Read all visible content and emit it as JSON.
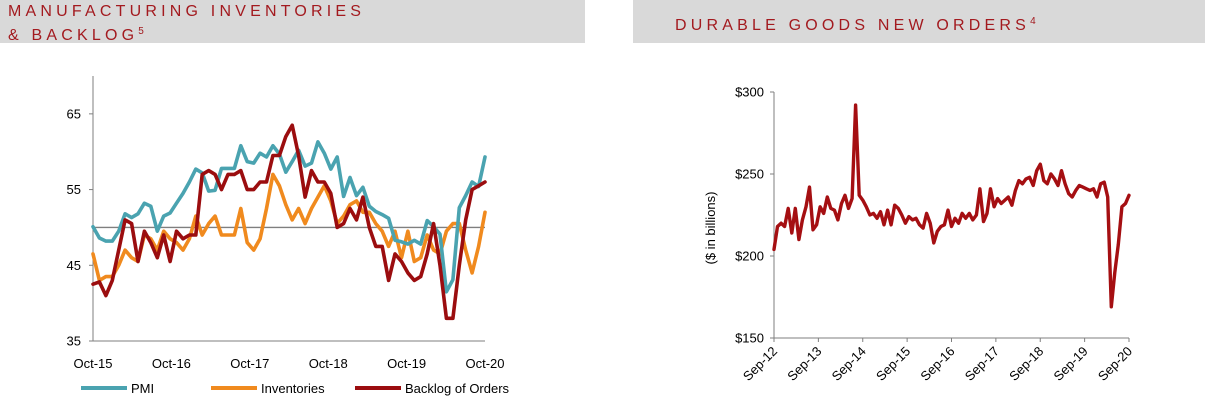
{
  "left_header": {
    "line1": "MANUFACTURING INVENTORIES",
    "line2": "& BACKLOG",
    "sup": "5"
  },
  "right_header": {
    "title": "DURABLE GOODS NEW ORDERS",
    "sup": "4"
  },
  "colors": {
    "header_bg": "#d9d9d9",
    "header_text": "#a31a1f",
    "pmi": "#4aa3b0",
    "inventories": "#f08a1e",
    "backlog": "#9b0d0f",
    "durable": "#a50f12"
  },
  "chart_data": [
    {
      "type": "line",
      "ylim": [
        35,
        70
      ],
      "yticks": [
        "35",
        "45",
        "55",
        "65"
      ],
      "reference_line": 50,
      "xtick_labels": [
        "Oct-15",
        "Oct-16",
        "Oct-17",
        "Oct-18",
        "Oct-19",
        "Oct-20"
      ],
      "x_months_from_oct15": [
        0,
        12,
        24,
        36,
        48,
        60
      ],
      "legend": [
        "PMI",
        "Inventories",
        "Backlog of Orders"
      ],
      "series": [
        {
          "name": "PMI",
          "values": [
            50.1,
            48.6,
            48.2,
            48.2,
            49.5,
            51.8,
            51.3,
            51.8,
            53.2,
            52.8,
            49.5,
            51.5,
            51.9,
            53.2,
            54.5,
            56.0,
            57.7,
            57.2,
            54.8,
            54.9,
            57.8,
            57.8,
            57.8,
            60.8,
            58.7,
            58.5,
            59.8,
            59.3,
            60.8,
            59.7,
            57.3,
            58.7,
            60.2,
            58.1,
            58.5,
            61.3,
            59.8,
            57.7,
            59.3,
            54.1,
            56.6,
            54.2,
            55.3,
            52.8,
            52.1,
            51.7,
            51.2,
            48.3,
            48.1,
            47.8,
            48.3,
            47.8,
            50.9,
            50.1,
            49.1,
            41.5,
            43.1,
            52.6,
            54.2,
            56.0,
            55.4,
            59.3
          ]
        },
        {
          "name": "Inventories",
          "values": [
            46.5,
            43.0,
            43.5,
            43.5,
            45.0,
            47.0,
            46.0,
            45.5,
            49.0,
            48.5,
            47.0,
            49.5,
            48.5,
            48.0,
            47.0,
            48.5,
            51.5,
            49.0,
            50.5,
            51.5,
            49.0,
            49.0,
            49.0,
            52.5,
            48.0,
            47.0,
            48.5,
            52.5,
            57.0,
            55.5,
            53.0,
            51.0,
            52.5,
            50.5,
            52.5,
            54.0,
            55.5,
            53.5,
            50.5,
            51.5,
            53.0,
            53.5,
            52.0,
            52.0,
            50.5,
            49.5,
            47.5,
            49.5,
            46.0,
            49.5,
            45.5,
            46.0,
            49.0,
            47.0,
            46.5,
            49.5,
            50.5,
            50.5,
            47.0,
            44.0,
            47.5,
            52.0
          ]
        },
        {
          "name": "Backlog of Orders",
          "values": [
            42.5,
            42.8,
            41.0,
            43.0,
            47.0,
            51.0,
            50.5,
            45.5,
            49.5,
            48.0,
            46.0,
            49.0,
            45.5,
            49.5,
            48.5,
            49.0,
            49.0,
            57.0,
            57.5,
            57.0,
            55.0,
            57.0,
            57.0,
            57.5,
            55.0,
            55.0,
            56.0,
            56.0,
            59.5,
            59.5,
            62.0,
            63.5,
            59.5,
            54.0,
            57.5,
            56.0,
            56.0,
            54.5,
            50.0,
            50.5,
            52.5,
            51.0,
            54.0,
            50.0,
            47.5,
            47.5,
            43.0,
            46.5,
            45.5,
            44.0,
            43.0,
            43.5,
            46.5,
            50.5,
            45.0,
            38.0,
            38.0,
            45.0,
            51.0,
            55.0,
            55.5,
            56.0
          ]
        }
      ]
    },
    {
      "type": "line",
      "ylim": [
        150,
        300
      ],
      "yticks": [
        "$150",
        "$200",
        "$250",
        "$300"
      ],
      "ylabel": "($ in billions)",
      "xtick_labels": [
        "Sep-12",
        "Sep-13",
        "Sep-14",
        "Sep-15",
        "Sep-16",
        "Sep-17",
        "Sep-18",
        "Sep-19",
        "Sep-20"
      ],
      "x_months_from_sep12": [
        0,
        12,
        24,
        36,
        48,
        60,
        72,
        84,
        96
      ],
      "series": [
        {
          "name": "Durable goods new orders",
          "values": [
            204,
            218,
            220,
            218,
            229,
            214,
            229,
            210,
            222,
            230,
            242,
            216,
            219,
            230,
            226,
            236,
            229,
            228,
            222,
            232,
            237,
            229,
            235,
            292,
            237,
            234,
            230,
            225,
            226,
            223,
            227,
            219,
            228,
            219,
            231,
            229,
            225,
            220,
            224,
            222,
            223,
            219,
            217,
            226,
            220,
            208,
            215,
            218,
            219,
            228,
            218,
            223,
            220,
            226,
            223,
            226,
            222,
            225,
            241,
            221,
            226,
            241,
            230,
            235,
            232,
            234,
            236,
            231,
            240,
            246,
            244,
            247,
            248,
            243,
            252,
            256,
            246,
            244,
            250,
            247,
            243,
            252,
            244,
            238,
            236,
            240,
            243,
            242,
            241,
            240,
            241,
            236,
            244,
            245,
            236,
            169,
            190,
            207,
            230,
            232,
            237
          ]
        }
      ]
    }
  ]
}
